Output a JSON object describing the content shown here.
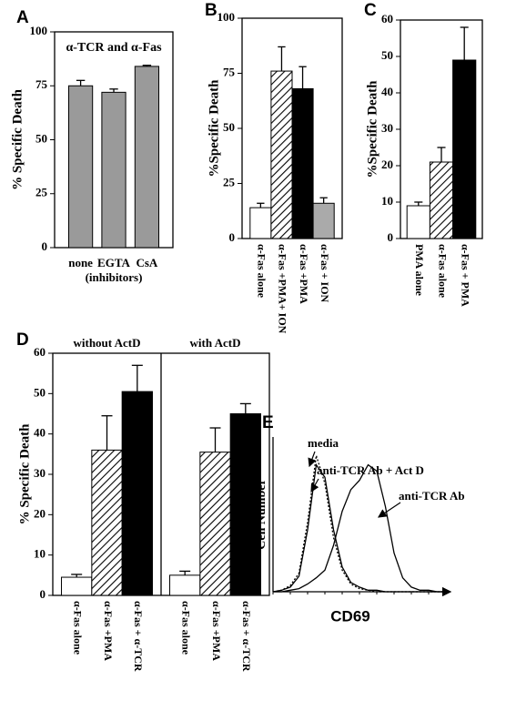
{
  "chart_data": [
    {
      "type": "bar",
      "label": "A",
      "title": "α-TCR and α-Fas",
      "ylabel": "% Specific Death",
      "annotation": "(inhibitors)",
      "categories": [
        "none",
        "EGTA",
        "CsA"
      ],
      "values": [
        75,
        72,
        84
      ],
      "errors": [
        2.5,
        1.5,
        0.5
      ],
      "colors": [
        "#9a9a9a",
        "#9a9a9a",
        "#9a9a9a"
      ],
      "ylim": [
        0,
        100
      ],
      "yticks": [
        0,
        25,
        50,
        75,
        100
      ]
    },
    {
      "type": "bar",
      "label": "B",
      "ylabel": "%Specific Death",
      "categories": [
        "α-Fas alone",
        "α-Fas +PMA+ ION",
        "α-Fas +PMA",
        "α-Fas + ION"
      ],
      "values": [
        14,
        76,
        68,
        16
      ],
      "errors": [
        2,
        11,
        10,
        2.5
      ],
      "colors": [
        "#ffffff",
        "hatch",
        "#000000",
        "#aaaaaa"
      ],
      "ylim": [
        0,
        100
      ],
      "yticks": [
        0,
        25,
        50,
        75,
        100
      ]
    },
    {
      "type": "bar",
      "label": "C",
      "ylabel": "%Specific Death",
      "categories": [
        "PMA alone",
        "α-Fas alone",
        "α-Fas + PMA"
      ],
      "values": [
        9,
        21,
        49
      ],
      "errors": [
        1,
        4,
        9
      ],
      "colors": [
        "#ffffff",
        "hatch",
        "#000000"
      ],
      "ylim": [
        0,
        60
      ],
      "yticks": [
        0,
        10,
        20,
        30,
        40,
        50,
        60
      ]
    },
    {
      "type": "grouped-bar",
      "label": "D",
      "ylabel": "% Specific Death",
      "groups": [
        {
          "name": "without ActD",
          "categories": [
            "α-Fas alone",
            "α-Fas +PMA",
            "α-Fas + α-TCR"
          ],
          "values": [
            4.5,
            36,
            50.5
          ],
          "errors": [
            0.7,
            8.5,
            6.5
          ]
        },
        {
          "name": "with ActD",
          "categories": [
            "α-Fas alone",
            "α-Fas +PMA",
            "α-Fas + α-TCR"
          ],
          "values": [
            5,
            35.5,
            45
          ],
          "errors": [
            1,
            6,
            2.5
          ]
        }
      ],
      "colors": [
        "#ffffff",
        "hatch",
        "#000000"
      ],
      "ylim": [
        0,
        60
      ],
      "yticks": [
        0,
        10,
        20,
        30,
        40,
        50,
        60
      ]
    },
    {
      "type": "line",
      "label": "E",
      "xlabel": "CD69",
      "ylabel": "Cell Number",
      "x": [
        0,
        5,
        10,
        15,
        20,
        25,
        30,
        35,
        40,
        45,
        50,
        55,
        60,
        65,
        70,
        75,
        80,
        85,
        90,
        95,
        100
      ],
      "series": [
        {
          "name": "media",
          "style": "dotted",
          "color": "#000000",
          "values": [
            0,
            1,
            4,
            12,
            45,
            88,
            70,
            35,
            14,
            5,
            2,
            1,
            0,
            0,
            0,
            0,
            0,
            0,
            0,
            0,
            0
          ]
        },
        {
          "name": "anti-TCR Ab + Act D",
          "style": "solid",
          "color": "#000000",
          "values": [
            0,
            1,
            3,
            10,
            40,
            82,
            74,
            40,
            16,
            6,
            3,
            1,
            1,
            0,
            0,
            0,
            0,
            0,
            0,
            0,
            0
          ]
        },
        {
          "name": "anti-TCR Ab",
          "style": "solid",
          "color": "#000000",
          "values": [
            0,
            0,
            1,
            2,
            5,
            9,
            14,
            30,
            52,
            66,
            72,
            82,
            78,
            55,
            25,
            9,
            3,
            1,
            1,
            0,
            0
          ]
        }
      ],
      "xlim": [
        0,
        100
      ],
      "ylim": [
        0,
        100
      ]
    }
  ]
}
